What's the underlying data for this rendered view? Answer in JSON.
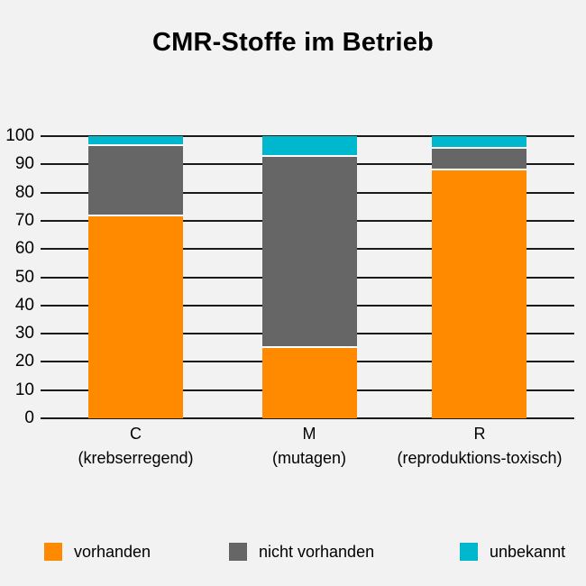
{
  "title": "CMR-Stoffe im Betrieb",
  "colors": {
    "background": "#f2f2f2",
    "gridline": "#1a1a1a",
    "separator": "#ffffff",
    "text": "#000000"
  },
  "chart_data": {
    "type": "bar",
    "stacked": true,
    "title": "CMR-Stoffe im Betrieb",
    "categories": [
      {
        "label": "C",
        "sublabel": "(krebserregend)"
      },
      {
        "label": "M",
        "sublabel": "(mutagen)"
      },
      {
        "label": "R",
        "sublabel": "(reproduktions-toxisch)"
      }
    ],
    "series": [
      {
        "name": "vorhanden",
        "color": "#ff8a00",
        "values": [
          71.5,
          25.0,
          88.0
        ]
      },
      {
        "name": "nicht vorhanden",
        "color": "#666666",
        "values": [
          25.0,
          67.5,
          7.5
        ]
      },
      {
        "name": "unbekannt",
        "color": "#00b8ce",
        "values": [
          3.5,
          7.5,
          4.5
        ]
      }
    ],
    "ylim": [
      0,
      100
    ],
    "yticks": [
      0,
      10,
      20,
      30,
      40,
      50,
      60,
      70,
      80,
      90,
      100
    ],
    "grid": true,
    "legend_position": "bottom"
  }
}
